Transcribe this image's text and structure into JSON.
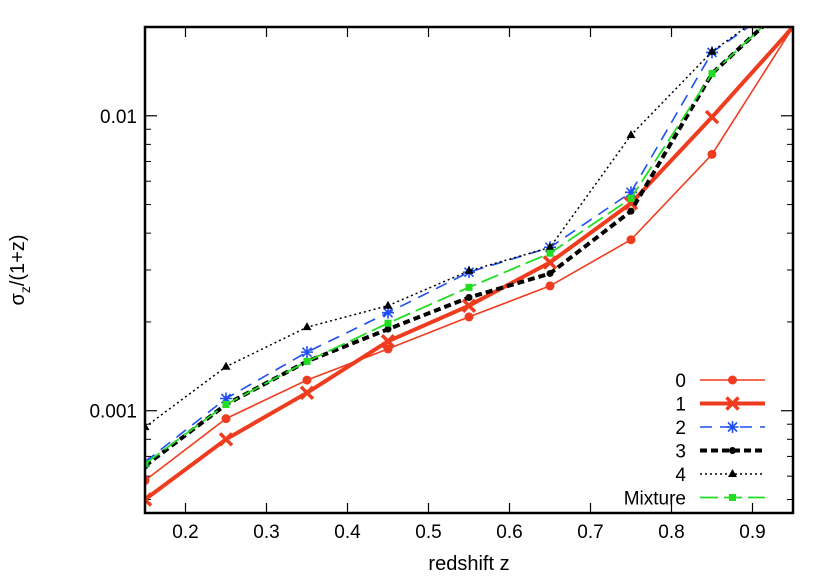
{
  "chart_data": {
    "type": "line",
    "xlabel": "redshift z",
    "ylabel": "σz/(1+z)",
    "ylabel_parts": {
      "sigma": "σ",
      "subscript": "z",
      "rest": "/(1+z)"
    },
    "xlim": [
      0.15,
      0.95
    ],
    "ylim": [
      0.00045,
      0.02
    ],
    "yscale": "log",
    "x_ticks": [
      0.2,
      0.3,
      0.4,
      0.5,
      0.6,
      0.7,
      0.8,
      0.9
    ],
    "x_tick_labels": [
      "0.2",
      "0.3",
      "0.4",
      "0.5",
      "0.6",
      "0.7",
      "0.8",
      "0.9"
    ],
    "y_ticks": [
      0.001,
      0.01
    ],
    "y_tick_labels": [
      "0.001",
      "0.01"
    ],
    "legend_position": "bottom-right",
    "x": [
      0.15,
      0.25,
      0.35,
      0.45,
      0.55,
      0.65,
      0.75,
      0.85,
      0.95
    ],
    "series": [
      {
        "name": "0",
        "color": "#f03c1e",
        "marker": "circle",
        "dash": "solid",
        "width": 1.6,
        "values": [
          0.00058,
          0.00094,
          0.00127,
          0.00162,
          0.00208,
          0.00265,
          0.0038,
          0.0074,
          0.02
        ]
      },
      {
        "name": "1",
        "color": "#f03c1e",
        "marker": "x",
        "dash": "solid",
        "width": 4,
        "values": [
          0.0005,
          0.0008,
          0.00115,
          0.00172,
          0.00227,
          0.00318,
          0.00505,
          0.0099,
          0.02
        ]
      },
      {
        "name": "2",
        "color": "#1f4ff0",
        "marker": "star",
        "dash": "dashed",
        "width": 1.6,
        "values": [
          0.00067,
          0.0011,
          0.00158,
          0.00215,
          0.00295,
          0.00358,
          0.0055,
          0.0164,
          0.0255
        ]
      },
      {
        "name": "3",
        "color": "#000000",
        "marker": "dot",
        "dash": "bold-dashed",
        "width": 4,
        "values": [
          0.00065,
          0.00105,
          0.00147,
          0.00189,
          0.00242,
          0.00292,
          0.00475,
          0.0139,
          0.025
        ]
      },
      {
        "name": "4",
        "color": "#000000",
        "marker": "triangle",
        "dash": "dotted",
        "width": 1.5,
        "values": [
          0.00088,
          0.00141,
          0.00192,
          0.00227,
          0.00298,
          0.00358,
          0.0086,
          0.0165,
          0.026
        ]
      },
      {
        "name": "Mixture",
        "color": "#22dd22",
        "marker": "square",
        "dash": "long-dashed",
        "width": 1.8,
        "values": [
          0.00066,
          0.00105,
          0.00147,
          0.00198,
          0.00262,
          0.00342,
          0.00525,
          0.0139,
          0.025
        ]
      }
    ]
  }
}
